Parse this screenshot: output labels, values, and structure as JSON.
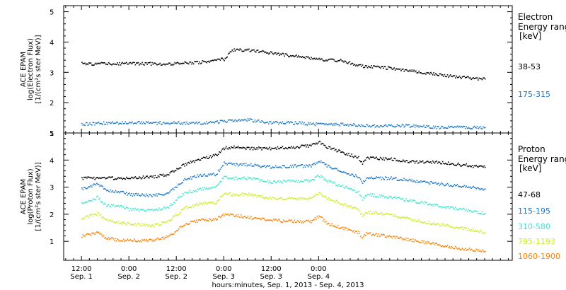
{
  "chart_data": [
    {
      "type": "scatter",
      "panel": "electron",
      "ylabel_lines": [
        "ACE EPAM",
        "log(Electron Flux)",
        "[1/(cm²s ster MeV)]"
      ],
      "ylim": [
        1,
        5.2
      ],
      "yticks": [
        "1",
        "2",
        "3",
        "4",
        "5"
      ],
      "legend_title_lines": [
        "Electron",
        "Energy ranges",
        "[keV]"
      ],
      "series": [
        {
          "name": "38-53",
          "color": "#000000",
          "x": [
            0,
            6,
            12,
            18,
            24,
            30,
            36,
            38,
            42,
            48,
            54,
            60,
            66,
            70,
            72,
            74,
            78,
            84,
            90,
            96,
            102
          ],
          "y": [
            3.3,
            3.3,
            3.3,
            3.3,
            3.3,
            3.35,
            3.45,
            3.75,
            3.75,
            3.65,
            3.55,
            3.45,
            3.4,
            3.25,
            3.2,
            3.2,
            3.15,
            3.05,
            2.95,
            2.85,
            2.8
          ]
        },
        {
          "name": "175-315",
          "color": "#1e78c8",
          "x": [
            0,
            6,
            12,
            18,
            24,
            30,
            36,
            42,
            48,
            54,
            60,
            66,
            72,
            78,
            84,
            90,
            96,
            102
          ],
          "y": [
            1.3,
            1.35,
            1.35,
            1.35,
            1.35,
            1.35,
            1.4,
            1.45,
            1.35,
            1.35,
            1.3,
            1.3,
            1.25,
            1.25,
            1.25,
            1.2,
            1.2,
            1.2
          ]
        }
      ]
    },
    {
      "type": "scatter",
      "panel": "proton",
      "ylabel_lines": [
        "ACE EPAM",
        "log(Proton Flux)",
        "[1/(cm²s ster MeV)]"
      ],
      "ylim": [
        0.3,
        5.0
      ],
      "yticks": [
        "1",
        "2",
        "3",
        "4",
        "5"
      ],
      "legend_title_lines": [
        "Proton",
        "Energy ranges",
        "[keV]"
      ],
      "series": [
        {
          "name": "47-68",
          "color": "#000000",
          "x": [
            0,
            6,
            12,
            18,
            22,
            26,
            30,
            34,
            36,
            38,
            42,
            48,
            54,
            58,
            60,
            62,
            66,
            70,
            71,
            72,
            78,
            84,
            90,
            96,
            102
          ],
          "y": [
            3.35,
            3.35,
            3.35,
            3.4,
            3.5,
            3.85,
            4.05,
            4.2,
            4.45,
            4.5,
            4.45,
            4.45,
            4.5,
            4.55,
            4.7,
            4.5,
            4.3,
            4.1,
            3.85,
            4.1,
            4.05,
            3.95,
            3.95,
            3.85,
            3.75
          ]
        },
        {
          "name": "115-195",
          "color": "#1e78c8",
          "x": [
            0,
            4,
            6,
            10,
            12,
            18,
            22,
            26,
            30,
            34,
            36,
            38,
            42,
            48,
            54,
            58,
            60,
            62,
            66,
            70,
            71,
            72,
            78,
            84,
            90,
            96,
            102
          ],
          "y": [
            2.95,
            3.15,
            2.9,
            2.85,
            2.75,
            2.7,
            2.8,
            3.3,
            3.45,
            3.5,
            3.9,
            3.85,
            3.85,
            3.75,
            3.8,
            3.8,
            4.0,
            3.8,
            3.6,
            3.4,
            3.15,
            3.35,
            3.35,
            3.25,
            3.15,
            3.05,
            2.95
          ]
        },
        {
          "name": "310-580",
          "color": "#3ee8d0",
          "x": [
            0,
            4,
            6,
            10,
            12,
            18,
            22,
            26,
            30,
            34,
            36,
            38,
            42,
            48,
            54,
            58,
            60,
            62,
            66,
            70,
            71,
            72,
            78,
            84,
            90,
            96,
            102
          ],
          "y": [
            2.4,
            2.65,
            2.35,
            2.3,
            2.2,
            2.15,
            2.3,
            2.8,
            2.95,
            3.05,
            3.4,
            3.35,
            3.35,
            3.2,
            3.25,
            3.25,
            3.45,
            3.25,
            3.05,
            2.85,
            2.55,
            2.75,
            2.65,
            2.5,
            2.35,
            2.2,
            2.05
          ]
        },
        {
          "name": "795-1193",
          "color": "#c8f020",
          "x": [
            0,
            4,
            6,
            10,
            12,
            18,
            22,
            26,
            30,
            34,
            36,
            38,
            42,
            48,
            54,
            58,
            60,
            62,
            66,
            70,
            71,
            72,
            78,
            84,
            90,
            96,
            102
          ],
          "y": [
            1.85,
            2.05,
            1.8,
            1.7,
            1.65,
            1.6,
            1.75,
            2.25,
            2.4,
            2.45,
            2.8,
            2.75,
            2.75,
            2.6,
            2.6,
            2.6,
            2.8,
            2.6,
            2.4,
            2.2,
            1.95,
            2.1,
            2.0,
            1.8,
            1.65,
            1.5,
            1.35
          ]
        },
        {
          "name": "1060-1900",
          "color": "#ff8000",
          "x": [
            0,
            4,
            6,
            10,
            12,
            18,
            22,
            26,
            30,
            34,
            36,
            38,
            42,
            48,
            54,
            58,
            60,
            62,
            66,
            70,
            71,
            72,
            78,
            84,
            90,
            96,
            102
          ],
          "y": [
            1.2,
            1.35,
            1.15,
            1.05,
            1.05,
            1.05,
            1.2,
            1.65,
            1.8,
            1.85,
            2.0,
            2.0,
            1.9,
            1.8,
            1.75,
            1.75,
            1.95,
            1.7,
            1.5,
            1.35,
            1.15,
            1.3,
            1.2,
            1.05,
            0.9,
            0.75,
            0.65
          ]
        }
      ]
    }
  ],
  "x_axis": {
    "xlim": [
      -4.5,
      109
    ],
    "ticks": [
      {
        "x": 0,
        "time": "12:00",
        "date": "Sep. 1"
      },
      {
        "x": 12,
        "time": "0:00",
        "date": "Sep. 2"
      },
      {
        "x": 24,
        "time": "12:00",
        "date": "Sep. 2"
      },
      {
        "x": 36,
        "time": "0:00",
        "date": "Sep. 3"
      },
      {
        "x": 48,
        "time": "12:00",
        "date": "Sep. 3"
      },
      {
        "x": 60,
        "time": "0:00",
        "date": "Sep. 4"
      }
    ],
    "xlabel": "hours:minutes, Sep.  1, 2013 - Sep.  4, 2013"
  }
}
